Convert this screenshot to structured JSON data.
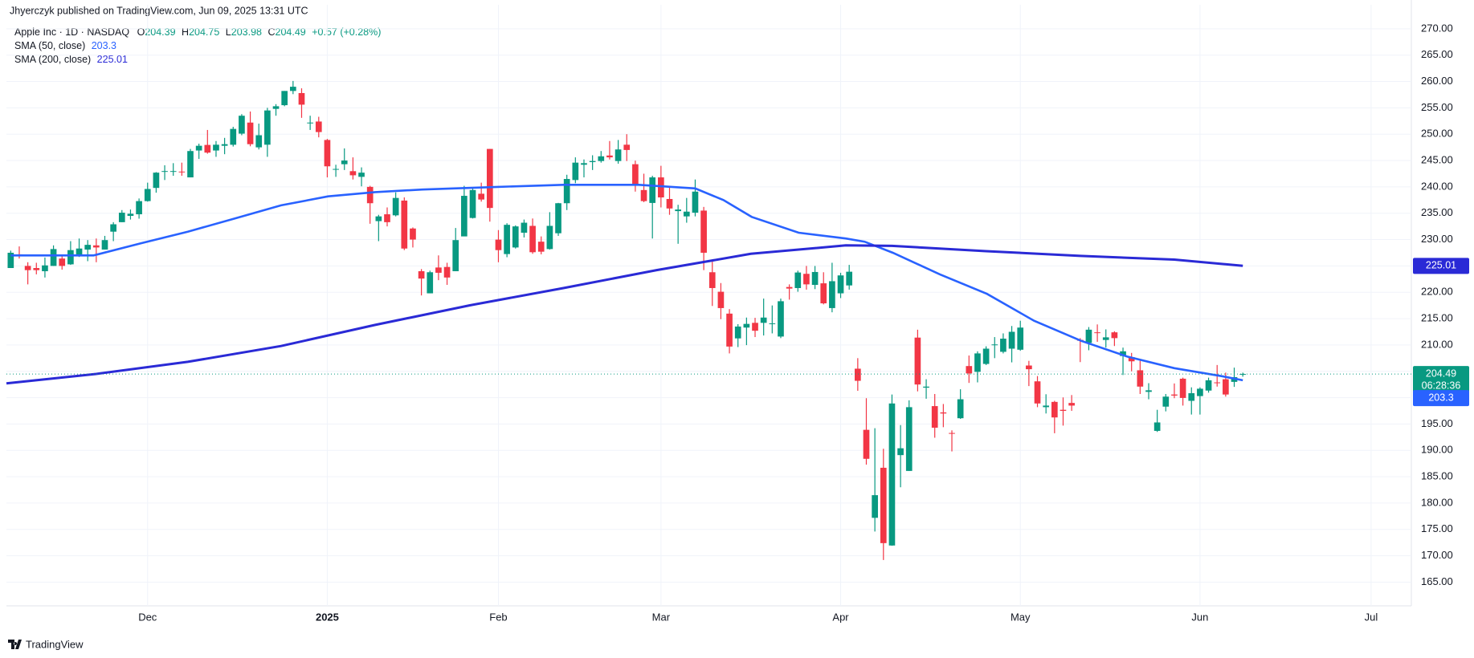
{
  "publisher": "Jhyerczyk published on TradingView.com, Jun 09, 2025 13:31 UTC",
  "footer": "TradingView",
  "chart_data": {
    "type": "candlestick",
    "title": "Apple Inc · 1D · NASDAQ",
    "legend_labels": [
      "O",
      "H",
      "L",
      "C"
    ],
    "change": "+0.57 (+0.28%)",
    "countdown": "06:28:36",
    "up_color": "#089981",
    "down_color": "#f23645",
    "grid": true,
    "open": [
      224.6,
      227.2,
      225.0,
      224.6,
      224.0,
      225.0,
      226.4,
      225.3,
      226.98,
      228.1,
      228.9,
      228.1,
      231.5,
      233.3,
      234.5,
      234.8,
      237.3,
      239.8,
      242.9,
      243.0,
      242.9,
      241.8,
      246.9,
      247.96,
      246.9,
      247.8,
      247.99,
      250.1,
      252.2,
      247.5,
      248.0,
      254.8,
      255.5,
      258.2,
      257.8,
      252.2,
      252.4,
      248.9,
      243.4,
      244.3,
      242.98,
      241.9,
      240.0,
      233.5,
      234.8,
      234.6,
      237.4,
      232.1,
      224.0,
      219.8,
      224.7,
      224.8,
      224.0,
      230.6,
      234.1,
      238.7,
      247.2,
      229.99,
      227.25,
      228.5,
      231.3,
      232.6,
      229.6,
      228.2,
      231.2,
      236.9,
      241.3,
      244.2,
      244.7,
      244.9,
      245.95,
      244.9,
      248.0,
      244.3,
      239.4,
      236.95,
      241.8,
      237.7,
      235.4,
      234.4,
      235.1,
      235.5,
      223.8,
      220.1,
      215.95,
      211.25,
      213.3,
      214.2,
      214.2,
      213.99,
      211.6,
      221.0,
      220.8,
      223.5,
      221.4,
      221.7,
      217.0,
      219.8,
      221.3,
      205.5,
      193.9,
      177.2,
      186.7,
      171.95,
      189.1,
      186.1,
      211.4,
      201.9,
      198.4,
      197.2,
      193.3,
      196.1,
      206.0,
      204.9,
      206.4,
      210.0,
      208.7,
      209.3,
      209.1,
      206.1,
      203.1,
      198.2,
      199.2,
      197.7,
      199.0,
      210.97,
      210.4,
      212.4,
      210.95,
      212.4,
      207.9,
      207.7,
      205.2,
      201.1,
      193.7,
      198.3,
      200.6,
      203.6,
      199.4,
      200.3,
      201.35,
      202.9,
      203.5,
      203.0,
      204.39
    ],
    "high": [
      227.9,
      228.7,
      225.7,
      225.6,
      226.6,
      228.9,
      226.9,
      229.7,
      230.2,
      229.9,
      230.2,
      230.7,
      233.3,
      235.6,
      235.7,
      237.8,
      240.8,
      242.8,
      244.1,
      244.5,
      244.6,
      247.2,
      248.2,
      250.8,
      248.7,
      249.3,
      251.4,
      253.8,
      254.3,
      252.0,
      255.0,
      255.7,
      258.2,
      260.1,
      258.7,
      253.5,
      253.3,
      249.1,
      244.2,
      247.3,
      245.6,
      243.7,
      240.2,
      234.7,
      236.1,
      238.96,
      238.0,
      232.3,
      224.4,
      224.1,
      227.0,
      225.6,
      232.2,
      240.2,
      239.9,
      240.8,
      247.2,
      231.8,
      233.1,
      232.7,
      233.8,
      234.0,
      230.6,
      235.2,
      236.96,
      242.3,
      245.6,
      245.2,
      246.0,
      246.8,
      248.7,
      248.9,
      250.0,
      244.98,
      242.5,
      242.1,
      244.0,
      240.1,
      236.6,
      237.9,
      241.4,
      236.2,
      225.8,
      221.75,
      216.8,
      213.95,
      215.2,
      215.15,
      218.8,
      217.5,
      218.8,
      221.5,
      224.1,
      225.0,
      224.99,
      223.8,
      225.6,
      223.7,
      225.2,
      207.5,
      199.9,
      194.2,
      190.3,
      200.6,
      194.8,
      199.5,
      212.9,
      203.5,
      200.7,
      198.8,
      193.8,
      201.6,
      208.0,
      208.8,
      209.75,
      211.5,
      212.2,
      213.6,
      214.6,
      206.99,
      204.1,
      200.65,
      199.4,
      200.05,
      200.5,
      211.3,
      213.4,
      213.9,
      212.96,
      212.6,
      209.5,
      208.5,
      207.0,
      202.75,
      197.7,
      200.7,
      202.7,
      203.8,
      201.96,
      201.96,
      203.8,
      206.2,
      204.75,
      205.7,
      204.75
    ],
    "low": [
      224.6,
      226.4,
      221.5,
      223.4,
      222.8,
      225.0,
      224.3,
      225.2,
      226.7,
      225.9,
      225.7,
      228.1,
      229.7,
      233.3,
      233.8,
      233.97,
      237.2,
      238.9,
      241.3,
      242.1,
      242.1,
      241.8,
      245.3,
      246.3,
      245.7,
      246.2,
      247.65,
      249.8,
      247.7,
      247.1,
      245.7,
      253.5,
      255.3,
      257.6,
      253.1,
      250.8,
      249.4,
      241.8,
      241.9,
      243.2,
      241.4,
      240.1,
      233.0,
      229.7,
      232.5,
      234.4,
      228.0,
      228.5,
      219.4,
      219.8,
      222.3,
      221.4,
      224.0,
      230.8,
      234.0,
      237.2,
      233.4,
      225.7,
      226.65,
      228.3,
      230.4,
      227.3,
      227.2,
      228.1,
      230.7,
      235.6,
      240.7,
      241.8,
      243.2,
      244.6,
      245.2,
      244.4,
      244.9,
      239.1,
      237.1,
      230.2,
      236.1,
      234.7,
      229.2,
      233.2,
      234.4,
      224.2,
      217.4,
      214.9,
      208.4,
      209.6,
      209.97,
      211.5,
      211.8,
      212.2,
      211.3,
      218.6,
      220.1,
      220.5,
      220.6,
      217.7,
      216.2,
      218.9,
      220.5,
      201.3,
      187.3,
      174.6,
      169.2,
      171.9,
      183.0,
      186.1,
      201.2,
      199.8,
      192.4,
      194.4,
      189.8,
      195.97,
      202.8,
      202.9,
      206.2,
      207.5,
      208.4,
      206.7,
      208.9,
      202.2,
      198.2,
      197.0,
      193.25,
      194.7,
      197.5,
      206.75,
      209.0,
      210.6,
      209.5,
      209.8,
      204.3,
      205.0,
      200.7,
      199.7,
      193.5,
      197.4,
      199.9,
      198.5,
      196.8,
      196.8,
      200.95,
      202.1,
      200.2,
      202.05,
      203.98
    ],
    "close": [
      227.5,
      227.0,
      224.2,
      224.2,
      225.1,
      228.2,
      225.0,
      228.0,
      228.3,
      229.0,
      228.5,
      229.9,
      232.9,
      235.1,
      234.9,
      237.3,
      239.6,
      242.7,
      243.0,
      243.0,
      242.8,
      246.8,
      247.8,
      246.5,
      248.0,
      248.1,
      251.0,
      253.5,
      248.1,
      249.8,
      254.5,
      255.3,
      258.2,
      259.0,
      255.6,
      252.2,
      250.4,
      243.9,
      243.4,
      245.0,
      242.2,
      242.7,
      236.9,
      234.4,
      233.3,
      237.9,
      228.3,
      230.0,
      222.6,
      223.8,
      223.7,
      222.8,
      229.9,
      238.3,
      239.4,
      237.6,
      236.0,
      228.0,
      232.8,
      232.5,
      233.2,
      227.6,
      227.7,
      232.6,
      236.9,
      241.5,
      244.6,
      244.5,
      244.9,
      245.8,
      245.6,
      247.1,
      247.0,
      240.4,
      237.3,
      241.8,
      238.0,
      235.9,
      235.7,
      235.3,
      239.1,
      227.5,
      220.8,
      217.0,
      209.7,
      213.5,
      214.0,
      212.7,
      215.2,
      214.1,
      218.3,
      220.7,
      223.75,
      221.5,
      223.85,
      217.9,
      222.1,
      223.2,
      223.9,
      203.2,
      188.4,
      181.5,
      172.4,
      198.9,
      190.4,
      198.2,
      202.5,
      202.1,
      194.3,
      197.0,
      193.2,
      199.7,
      204.6,
      208.4,
      209.3,
      210.1,
      211.2,
      212.5,
      213.3,
      205.4,
      198.9,
      198.5,
      196.25,
      197.5,
      198.5,
      210.8,
      212.9,
      212.3,
      211.45,
      211.3,
      208.8,
      206.9,
      202.1,
      201.4,
      195.3,
      200.2,
      200.4,
      199.95,
      200.85,
      201.7,
      203.3,
      202.8,
      200.6,
      203.9,
      204.49
    ],
    "sma": [
      {
        "name": "SMA (50, close)",
        "color": "#2962ff",
        "x": [
          0,
          9.7,
          15.2,
          20.7,
          26.2,
          31.6,
          37.1,
          42.6,
          48.1,
          56.9,
          64.6,
          73.4,
          80.0,
          83.3,
          86.6,
          92.1,
          97.6,
          99.8,
          103.1,
          108.6,
          114.1,
          119.6,
          125.1,
          130.5,
          136.0,
          141.5,
          144
        ],
        "values": [
          227.0,
          227.0,
          229.3,
          231.5,
          234.0,
          236.5,
          238.2,
          239.0,
          239.5,
          240.0,
          240.4,
          240.4,
          239.7,
          237.5,
          234.3,
          231.3,
          230.2,
          229.6,
          227.5,
          223.4,
          219.7,
          214.6,
          210.8,
          207.8,
          205.6,
          204.1,
          203.3
        ]
      },
      {
        "name": "SMA (200, close)",
        "color": "#2a2ad6",
        "x": [
          -0.5,
          10,
          20.7,
          31.6,
          42.6,
          53.6,
          64.6,
          75.5,
          86.5,
          97.6,
          103,
          114,
          125,
          136,
          144
        ],
        "values": [
          202.7,
          204.5,
          206.8,
          209.8,
          213.8,
          217.5,
          220.8,
          224.2,
          227.3,
          228.9,
          228.8,
          227.8,
          226.9,
          226.2,
          225.01
        ]
      }
    ],
    "xlim": [
      -0.5,
      163.7
    ],
    "xticks": [
      {
        "value": 16,
        "label": "Dec"
      },
      {
        "value": 37,
        "label": "2025"
      },
      {
        "value": 57,
        "label": "Feb"
      },
      {
        "value": 76,
        "label": "Mar"
      },
      {
        "value": 97,
        "label": "Apr"
      },
      {
        "value": 118,
        "label": "May"
      },
      {
        "value": 139,
        "label": "Jun"
      },
      {
        "value": 159,
        "label": "Jul"
      }
    ],
    "ylim": [
      160.5,
      271.5
    ],
    "yticks": [
      {
        "value": 165,
        "label": "165.00"
      },
      {
        "value": 170,
        "label": "170.00"
      },
      {
        "value": 175,
        "label": "175.00"
      },
      {
        "value": 180,
        "label": "180.00"
      },
      {
        "value": 185,
        "label": "185.00"
      },
      {
        "value": 190,
        "label": "190.00"
      },
      {
        "value": 195,
        "label": "195.00"
      },
      {
        "value": 200,
        "label": "200.00"
      },
      {
        "value": 205,
        "label": "205.00"
      },
      {
        "value": 210,
        "label": "210.00"
      },
      {
        "value": 215,
        "label": "215.00"
      },
      {
        "value": 220,
        "label": "220.00"
      },
      {
        "value": 225,
        "label": "225.00"
      },
      {
        "value": 230,
        "label": "230.00"
      },
      {
        "value": 235,
        "label": "235.00"
      },
      {
        "value": 240,
        "label": "240.00"
      },
      {
        "value": 245,
        "label": "245.00"
      },
      {
        "value": 250,
        "label": "250.00"
      },
      {
        "value": 255,
        "label": "255.00"
      },
      {
        "value": 260,
        "label": "260.00"
      },
      {
        "value": 265,
        "label": "265.00"
      },
      {
        "value": 270,
        "label": "270.00"
      }
    ]
  }
}
